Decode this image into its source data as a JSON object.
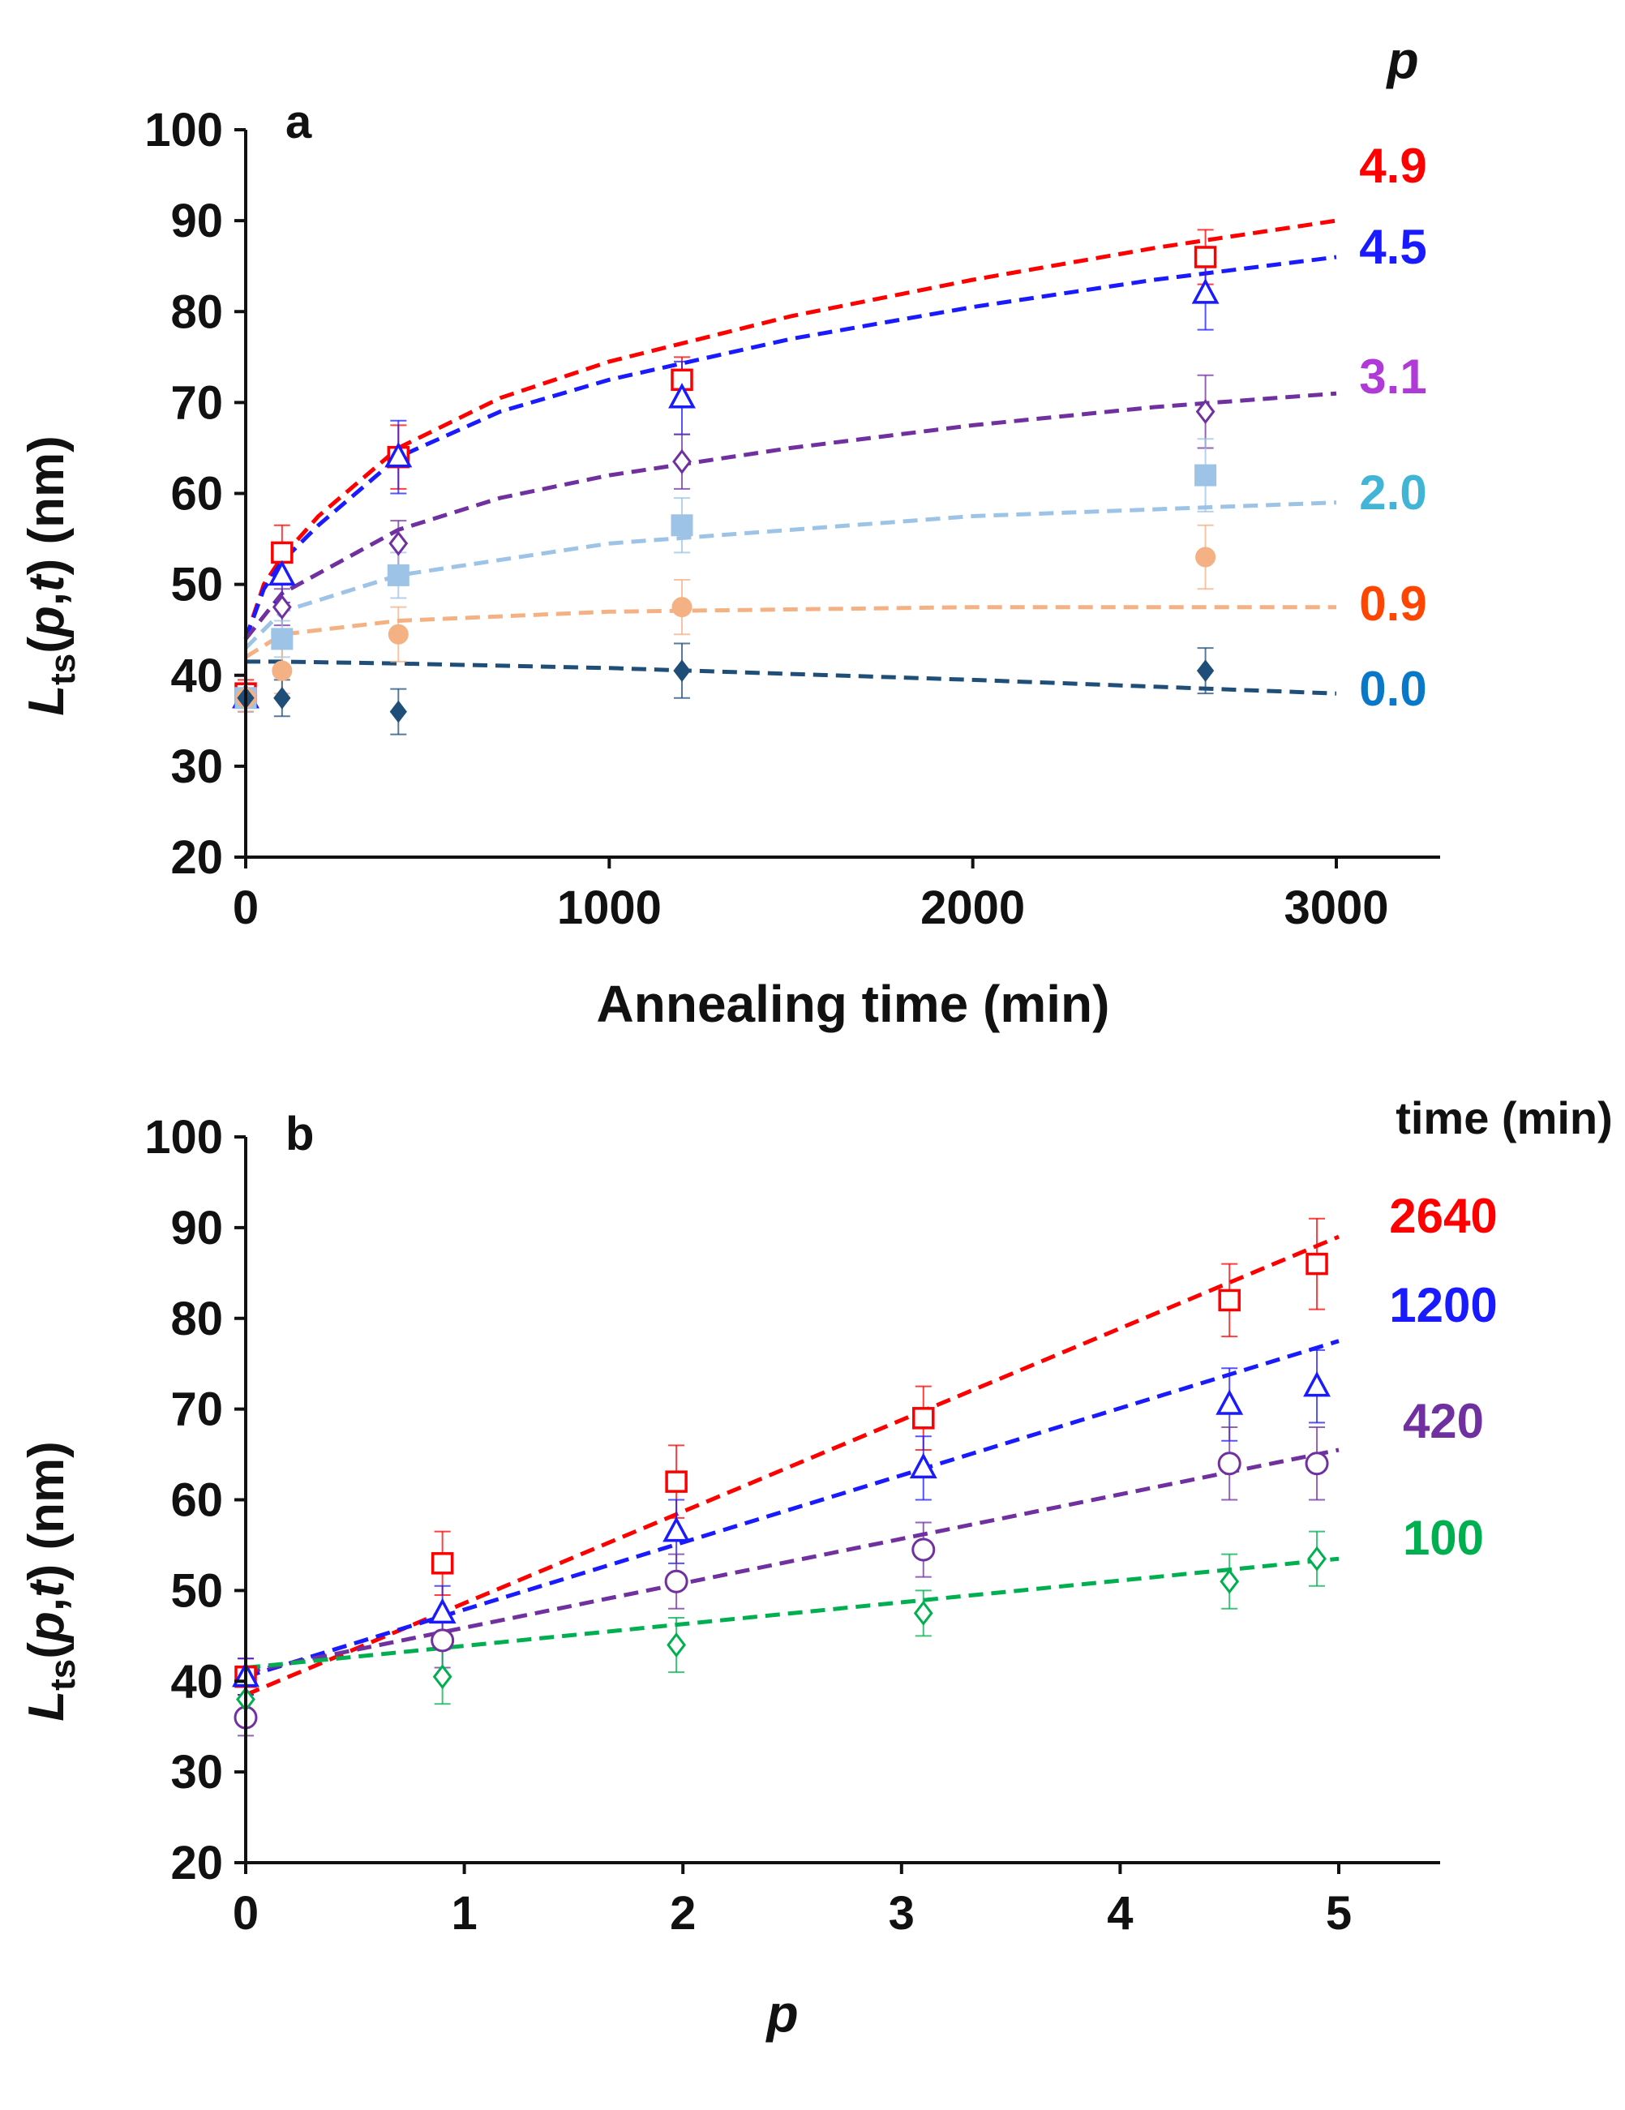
{
  "chart_data": [
    {
      "type": "scatter",
      "panel_label": "a",
      "title": "",
      "xlabel": "Annealing time (min)",
      "ylabel": {
        "main": "L",
        "sub": "ts",
        "args_open": "(",
        "arg1": "p",
        "comma": ",",
        "arg2": "t",
        "args_close": ")",
        "units": " (nm)"
      },
      "xlim": [
        0,
        3300
      ],
      "ylim": [
        20,
        100
      ],
      "xticks": [
        0,
        1000,
        2000,
        3000
      ],
      "xtick_labels": [
        "0",
        "1000",
        "2000",
        "3000"
      ],
      "yticks": [
        20,
        30,
        40,
        50,
        60,
        70,
        80,
        90,
        100
      ],
      "ytick_labels": [
        "20",
        "30",
        "40",
        "50",
        "60",
        "70",
        "80",
        "90",
        "100"
      ],
      "legend_title": "p",
      "series": [
        {
          "name": "4.9",
          "color": "#ff0000",
          "marker": "square-open",
          "x": [
            0,
            100,
            420,
            1200,
            2640
          ],
          "y": [
            38,
            53.5,
            64,
            72.5,
            86
          ],
          "err": [
            1.5,
            3,
            3.5,
            2.5,
            3
          ],
          "fit_x": [
            0,
            50,
            100,
            200,
            420,
            700,
            1000,
            1500,
            2000,
            2500,
            3000
          ],
          "fit_y": [
            44,
            50,
            53,
            57.5,
            65,
            70.5,
            74.5,
            79.5,
            83.5,
            87,
            90
          ]
        },
        {
          "name": "4.5",
          "color": "#1a1aff",
          "marker": "triangle-open",
          "x": [
            0,
            100,
            420,
            1200,
            2640
          ],
          "y": [
            37.5,
            51,
            64,
            70.5,
            82
          ],
          "err": [
            1.5,
            3,
            4,
            4,
            4
          ],
          "fit_x": [
            0,
            50,
            100,
            200,
            420,
            700,
            1000,
            1500,
            2000,
            2500,
            3000
          ],
          "fit_y": [
            44,
            49.5,
            52.5,
            56.5,
            64,
            69,
            72.5,
            77,
            80.5,
            83.5,
            86
          ]
        },
        {
          "name": "3.1",
          "color": "#7030a0",
          "marker": "diamond-open",
          "x": [
            0,
            100,
            420,
            1200,
            2640
          ],
          "y": [
            37.5,
            47.5,
            54.5,
            63.5,
            69
          ],
          "err": [
            1.5,
            2,
            2.5,
            3,
            4
          ],
          "fit_x": [
            0,
            100,
            420,
            700,
            1000,
            1500,
            2000,
            2500,
            3000
          ],
          "fit_y": [
            44,
            49,
            56,
            59.5,
            62,
            65,
            67.5,
            69.5,
            71
          ]
        },
        {
          "name": "2.0",
          "color": "#9dc3e6",
          "marker": "square-filled",
          "x": [
            0,
            100,
            420,
            1200,
            2640
          ],
          "y": [
            37.5,
            44,
            51,
            56.5,
            62
          ],
          "err": [
            1.5,
            2,
            2.5,
            3,
            4
          ],
          "fit_x": [
            0,
            100,
            420,
            1000,
            2000,
            3000
          ],
          "fit_y": [
            43,
            47,
            51,
            54.5,
            57.5,
            59
          ]
        },
        {
          "name": "0.9",
          "color": "#f4b183",
          "marker": "circle-filled",
          "x": [
            0,
            100,
            420,
            1200,
            2640
          ],
          "y": [
            37.5,
            40.5,
            44.5,
            47.5,
            53
          ],
          "err": [
            1.5,
            2.5,
            3,
            3,
            3.5
          ],
          "fit_x": [
            0,
            100,
            420,
            1000,
            2000,
            3000
          ],
          "fit_y": [
            42,
            44.5,
            46,
            47,
            47.5,
            47.5
          ]
        },
        {
          "name": "0.0",
          "color": "#1f4e79",
          "marker": "diamond-filled",
          "x": [
            0,
            100,
            420,
            1200,
            2640
          ],
          "y": [
            37.5,
            37.5,
            36,
            40.5,
            40.5
          ],
          "err": [
            1,
            2,
            2.5,
            3,
            2.5
          ],
          "fit_x": [
            0,
            100,
            420,
            1000,
            2000,
            3000
          ],
          "fit_y": [
            41.5,
            41.5,
            41.3,
            40.8,
            39.5,
            38
          ]
        }
      ]
    },
    {
      "type": "scatter",
      "panel_label": "b",
      "title": "",
      "xlabel": "p",
      "ylabel": {
        "main": "L",
        "sub": "ts",
        "args_open": "(",
        "arg1": "p",
        "comma": ",",
        "arg2": "t",
        "args_close": ")",
        "units": " (nm)"
      },
      "xlim": [
        0,
        5.5
      ],
      "ylim": [
        20,
        100
      ],
      "xticks": [
        0,
        1,
        2,
        3,
        4,
        5
      ],
      "xtick_labels": [
        "0",
        "1",
        "2",
        "3",
        "4",
        "5"
      ],
      "yticks": [
        20,
        30,
        40,
        50,
        60,
        70,
        80,
        90,
        100
      ],
      "ytick_labels": [
        "20",
        "30",
        "40",
        "50",
        "60",
        "70",
        "80",
        "90",
        "100"
      ],
      "legend_title": "time (min)",
      "series": [
        {
          "name": "2640",
          "color": "#ff0000",
          "marker": "square-open",
          "x": [
            0,
            0.9,
            1.97,
            3.1,
            4.5,
            4.9
          ],
          "y": [
            40.5,
            53,
            62,
            69,
            82,
            86
          ],
          "err": [
            2,
            3.5,
            4,
            3.5,
            4,
            5
          ],
          "fit_x": [
            0,
            5
          ],
          "fit_y": [
            38.5,
            89
          ]
        },
        {
          "name": "1200",
          "color": "#1a1aff",
          "marker": "triangle-open",
          "x": [
            0,
            0.9,
            1.97,
            3.1,
            4.5,
            4.9
          ],
          "y": [
            40.5,
            47.5,
            56.5,
            63.5,
            70.5,
            72.5
          ],
          "err": [
            2,
            3,
            3.5,
            3.5,
            4,
            4
          ],
          "fit_x": [
            0,
            5
          ],
          "fit_y": [
            40.5,
            77.5
          ]
        },
        {
          "name": "420",
          "color": "#7030a0",
          "marker": "circle-open",
          "x": [
            0,
            0.9,
            1.97,
            3.1,
            4.5,
            4.9
          ],
          "y": [
            36,
            44.5,
            51,
            54.5,
            64,
            64
          ],
          "err": [
            2,
            3,
            3,
            3,
            4,
            4
          ],
          "fit_x": [
            0,
            5
          ],
          "fit_y": [
            41,
            65.5
          ]
        },
        {
          "name": "100",
          "color": "#00b050",
          "marker": "diamond-open",
          "x": [
            0,
            0.9,
            1.97,
            3.1,
            4.5,
            4.9
          ],
          "y": [
            38,
            40.5,
            44,
            47.5,
            51,
            53.5
          ],
          "err": [
            1.5,
            3,
            3,
            2.5,
            3,
            3
          ],
          "fit_x": [
            0,
            5
          ],
          "fit_y": [
            41.5,
            53.5
          ]
        }
      ]
    }
  ]
}
